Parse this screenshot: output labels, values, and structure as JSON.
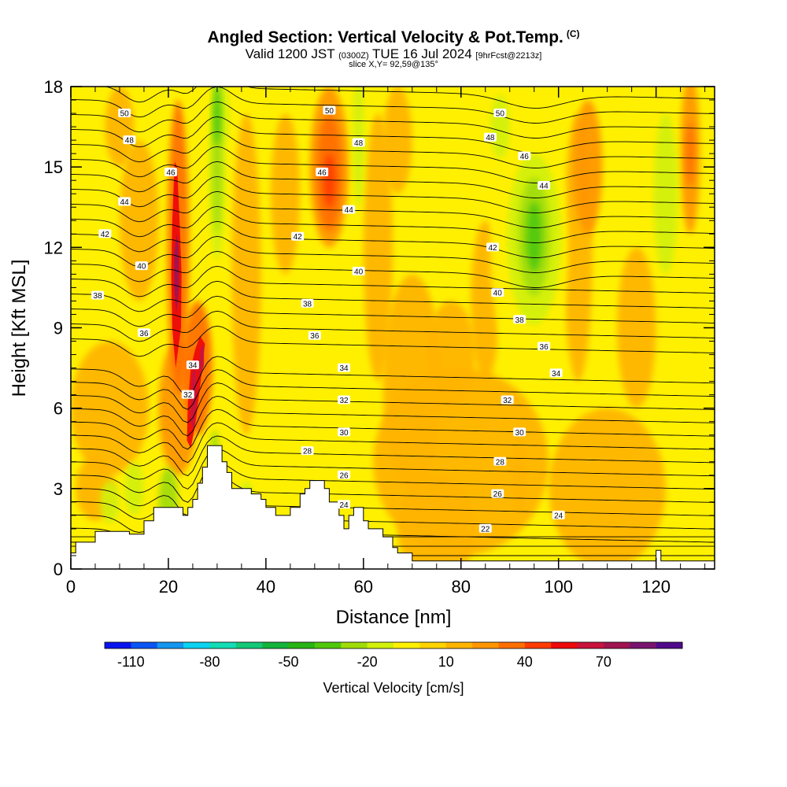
{
  "title": {
    "main": "Angled Section: Vertical Velocity & Pot.Temp.",
    "main_mark": "(C)",
    "valid_pre": "Valid 1200 JST",
    "valid_small1": "(0300Z)",
    "valid_date": "TUE 16 Jul 2024",
    "valid_small2": "[9hrFcst@2213z]",
    "slice": "slice X,Y= 92,59@135°"
  },
  "chart_data": {
    "type": "contour",
    "xlabel": "Distance [nm]",
    "ylabel": "Height [Kft MSL]",
    "xlim": [
      0,
      132
    ],
    "ylim": [
      0,
      18
    ],
    "x_ticks": [
      0,
      20,
      40,
      60,
      80,
      100,
      120
    ],
    "y_ticks": [
      0,
      3,
      6,
      9,
      12,
      15,
      18
    ],
    "colorbar": {
      "label": "Vertical Velocity [cm/s]",
      "tick_labels": [
        "-110",
        "-80",
        "-50",
        "-20",
        "10",
        "40",
        "70"
      ],
      "bins": [
        -120,
        -110,
        -100,
        -90,
        -80,
        -70,
        -60,
        -50,
        -40,
        -30,
        -20,
        -10,
        0,
        10,
        20,
        30,
        40,
        50,
        60,
        70,
        80,
        90
      ],
      "colors": [
        "#0a14ee",
        "#0a55f4",
        "#1496f0",
        "#0ad2f0",
        "#14dcb4",
        "#14c878",
        "#14b43c",
        "#28b414",
        "#50c80a",
        "#a0dc0a",
        "#d2f00a",
        "#fff000",
        "#ffd200",
        "#ffb400",
        "#ff9600",
        "#ff6e00",
        "#ff3c00",
        "#ee0a0a",
        "#c8143c",
        "#a01450",
        "#78146e",
        "#500a8c"
      ]
    },
    "theta_contours": {
      "units": "C",
      "levels": [
        22,
        24,
        26,
        28,
        30,
        32,
        34,
        36,
        38,
        40,
        42,
        44,
        46,
        48,
        50
      ],
      "labels": [
        {
          "text": "50",
          "x": 11,
          "y": 17.0
        },
        {
          "text": "50",
          "x": 53,
          "y": 17.1
        },
        {
          "text": "50",
          "x": 88,
          "y": 17.0
        },
        {
          "text": "48",
          "x": 12,
          "y": 16.0
        },
        {
          "text": "48",
          "x": 59,
          "y": 15.9
        },
        {
          "text": "48",
          "x": 86,
          "y": 16.1
        },
        {
          "text": "46",
          "x": 20.5,
          "y": 14.8
        },
        {
          "text": "46",
          "x": 51.5,
          "y": 14.8
        },
        {
          "text": "46",
          "x": 93,
          "y": 15.4
        },
        {
          "text": "44",
          "x": 11,
          "y": 13.7
        },
        {
          "text": "44",
          "x": 57,
          "y": 13.4
        },
        {
          "text": "44",
          "x": 97,
          "y": 14.3
        },
        {
          "text": "42",
          "x": 7,
          "y": 12.5
        },
        {
          "text": "42",
          "x": 46.5,
          "y": 12.4
        },
        {
          "text": "42",
          "x": 86.5,
          "y": 12.0
        },
        {
          "text": "40",
          "x": 14.5,
          "y": 11.3
        },
        {
          "text": "40",
          "x": 59,
          "y": 11.1
        },
        {
          "text": "40",
          "x": 87.5,
          "y": 10.3
        },
        {
          "text": "38",
          "x": 5.5,
          "y": 10.2
        },
        {
          "text": "38",
          "x": 48.5,
          "y": 9.9
        },
        {
          "text": "38",
          "x": 92,
          "y": 9.3
        },
        {
          "text": "36",
          "x": 15,
          "y": 8.8
        },
        {
          "text": "36",
          "x": 50,
          "y": 8.7
        },
        {
          "text": "36",
          "x": 97,
          "y": 8.3
        },
        {
          "text": "34",
          "x": 25,
          "y": 7.6
        },
        {
          "text": "34",
          "x": 56,
          "y": 7.5
        },
        {
          "text": "34",
          "x": 99.5,
          "y": 7.3
        },
        {
          "text": "32",
          "x": 24,
          "y": 6.5
        },
        {
          "text": "32",
          "x": 56,
          "y": 6.3
        },
        {
          "text": "32",
          "x": 89.5,
          "y": 6.3
        },
        {
          "text": "30",
          "x": 56,
          "y": 5.1
        },
        {
          "text": "30",
          "x": 92,
          "y": 5.1
        },
        {
          "text": "28",
          "x": 48.5,
          "y": 4.4
        },
        {
          "text": "28",
          "x": 88,
          "y": 4.0
        },
        {
          "text": "26",
          "x": 56,
          "y": 3.5
        },
        {
          "text": "26",
          "x": 87.5,
          "y": 2.8
        },
        {
          "text": "24",
          "x": 56,
          "y": 2.4
        },
        {
          "text": "24",
          "x": 100,
          "y": 2.0
        },
        {
          "text": "22",
          "x": 85,
          "y": 1.5
        }
      ]
    },
    "terrain": [
      [
        0,
        0.6
      ],
      [
        1,
        0.6
      ],
      [
        1,
        1.0
      ],
      [
        5,
        1.0
      ],
      [
        5,
        1.4
      ],
      [
        12,
        1.4
      ],
      [
        12,
        1.3
      ],
      [
        15,
        1.3
      ],
      [
        15,
        1.8
      ],
      [
        17,
        1.8
      ],
      [
        17,
        2.3
      ],
      [
        23,
        2.3
      ],
      [
        23,
        2.0
      ],
      [
        24,
        2.0
      ],
      [
        24,
        2.3
      ],
      [
        25,
        2.3
      ],
      [
        25,
        2.6
      ],
      [
        26,
        2.6
      ],
      [
        26,
        3.2
      ],
      [
        27,
        3.2
      ],
      [
        27,
        3.8
      ],
      [
        28,
        3.8
      ],
      [
        28,
        4.6
      ],
      [
        31,
        4.6
      ],
      [
        31,
        4.0
      ],
      [
        32,
        4.0
      ],
      [
        32,
        3.6
      ],
      [
        33,
        3.6
      ],
      [
        33,
        3.0
      ],
      [
        37,
        3.0
      ],
      [
        37,
        2.8
      ],
      [
        39,
        2.8
      ],
      [
        39,
        2.6
      ],
      [
        40,
        2.6
      ],
      [
        40,
        2.3
      ],
      [
        42,
        2.3
      ],
      [
        42,
        2.0
      ],
      [
        45,
        2.0
      ],
      [
        45,
        2.3
      ],
      [
        47,
        2.3
      ],
      [
        47,
        2.8
      ],
      [
        48,
        2.8
      ],
      [
        48,
        3.0
      ],
      [
        49,
        3.0
      ],
      [
        49,
        3.3
      ],
      [
        52,
        3.3
      ],
      [
        52,
        3.0
      ],
      [
        53,
        3.0
      ],
      [
        53,
        2.5
      ],
      [
        55,
        2.5
      ],
      [
        55,
        2.0
      ],
      [
        56,
        2.0
      ],
      [
        56,
        1.5
      ],
      [
        57,
        1.5
      ],
      [
        57,
        2.0
      ],
      [
        58,
        2.0
      ],
      [
        58,
        2.3
      ],
      [
        60,
        2.3
      ],
      [
        60,
        1.8
      ],
      [
        61,
        1.8
      ],
      [
        61,
        1.5
      ],
      [
        64,
        1.5
      ],
      [
        64,
        1.2
      ],
      [
        66,
        1.2
      ],
      [
        66,
        0.8
      ],
      [
        67,
        0.8
      ],
      [
        67,
        0.6
      ],
      [
        70,
        0.6
      ],
      [
        70,
        0.3
      ],
      [
        120,
        0.3
      ],
      [
        120,
        0.7
      ],
      [
        121,
        0.7
      ],
      [
        121,
        0.3
      ],
      [
        132,
        0.3
      ]
    ],
    "velocity_features": [
      {
        "label": "updraft core",
        "x": 21.5,
        "y": 10.5,
        "max_cm_s": 70
      },
      {
        "label": "updraft core",
        "x": 25,
        "y": 6.5,
        "max_cm_s": 60
      },
      {
        "label": "downdraft",
        "x": 95,
        "y": 12.5,
        "min_cm_s": -50
      },
      {
        "label": "downdraft",
        "x": 30,
        "y": 15,
        "min_cm_s": -30
      },
      {
        "label": "updraft",
        "x": 53,
        "y": 15,
        "max_cm_s": 40
      }
    ]
  }
}
